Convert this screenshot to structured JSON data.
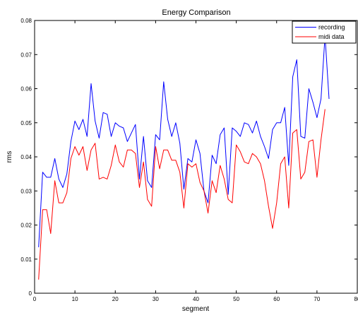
{
  "chart_data": {
    "type": "line",
    "title": "Energy Comparison",
    "xlabel": "segment",
    "ylabel": "rms",
    "xlim": [
      0,
      80
    ],
    "ylim": [
      0,
      0.08
    ],
    "xticks": [
      "0",
      "10",
      "20",
      "30",
      "40",
      "50",
      "60",
      "70",
      "80"
    ],
    "yticks": [
      "0",
      "0.01",
      "0.02",
      "0.03",
      "0.04",
      "0.05",
      "0.06",
      "0.07",
      "0.08"
    ],
    "grid": false,
    "legend_position": "top-right",
    "series": [
      {
        "name": "recording",
        "color": "#0000ff",
        "x": [
          1,
          2,
          3,
          4,
          5,
          6,
          7,
          8,
          9,
          10,
          11,
          12,
          13,
          14,
          15,
          16,
          17,
          18,
          19,
          20,
          21,
          22,
          23,
          24,
          25,
          26,
          27,
          28,
          29,
          30,
          31,
          32,
          33,
          34,
          35,
          36,
          37,
          38,
          39,
          40,
          41,
          42,
          43,
          44,
          45,
          46,
          47,
          48,
          49,
          50,
          51,
          52,
          53,
          54,
          55,
          56,
          57,
          58,
          59,
          60,
          61,
          62,
          63,
          64,
          65,
          66,
          67,
          68,
          69,
          70,
          71,
          72,
          73
        ],
        "y": [
          0.0135,
          0.0355,
          0.034,
          0.034,
          0.0395,
          0.0335,
          0.031,
          0.035,
          0.0445,
          0.0505,
          0.048,
          0.051,
          0.046,
          0.0615,
          0.0505,
          0.0455,
          0.053,
          0.0525,
          0.046,
          0.05,
          0.049,
          0.0485,
          0.0445,
          0.047,
          0.0495,
          0.0335,
          0.046,
          0.033,
          0.031,
          0.0465,
          0.045,
          0.062,
          0.051,
          0.046,
          0.05,
          0.044,
          0.0305,
          0.0395,
          0.0385,
          0.045,
          0.041,
          0.03,
          0.0265,
          0.0405,
          0.038,
          0.0465,
          0.0485,
          0.029,
          0.0485,
          0.0475,
          0.046,
          0.05,
          0.0495,
          0.047,
          0.0505,
          0.046,
          0.043,
          0.0395,
          0.048,
          0.05,
          0.05,
          0.0545,
          0.0375,
          0.0635,
          0.0685,
          0.046,
          0.0455,
          0.06,
          0.056,
          0.0515,
          0.057,
          0.0755,
          0.057
        ]
      },
      {
        "name": "midi data",
        "color": "#ff0000",
        "x": [
          1,
          2,
          3,
          4,
          5,
          6,
          7,
          8,
          9,
          10,
          11,
          12,
          13,
          14,
          15,
          16,
          17,
          18,
          19,
          20,
          21,
          22,
          23,
          24,
          25,
          26,
          27,
          28,
          29,
          30,
          31,
          32,
          33,
          34,
          35,
          36,
          37,
          38,
          39,
          40,
          41,
          42,
          43,
          44,
          45,
          46,
          47,
          48,
          49,
          50,
          51,
          52,
          53,
          54,
          55,
          56,
          57,
          58,
          59,
          60,
          61,
          62,
          63,
          64,
          65,
          66,
          67,
          68,
          69,
          70,
          71,
          72
        ],
        "y": [
          0.004,
          0.0245,
          0.0245,
          0.0175,
          0.033,
          0.0265,
          0.0265,
          0.0295,
          0.0395,
          0.043,
          0.0405,
          0.043,
          0.036,
          0.042,
          0.044,
          0.0335,
          0.034,
          0.0335,
          0.0375,
          0.0435,
          0.0385,
          0.037,
          0.042,
          0.042,
          0.041,
          0.031,
          0.0385,
          0.0275,
          0.0255,
          0.043,
          0.0365,
          0.042,
          0.042,
          0.039,
          0.039,
          0.0355,
          0.025,
          0.038,
          0.037,
          0.038,
          0.0325,
          0.03,
          0.0235,
          0.033,
          0.0295,
          0.0375,
          0.0335,
          0.0275,
          0.0265,
          0.0435,
          0.0415,
          0.0385,
          0.038,
          0.041,
          0.04,
          0.038,
          0.033,
          0.0255,
          0.019,
          0.0265,
          0.038,
          0.04,
          0.025,
          0.047,
          0.048,
          0.0335,
          0.0355,
          0.0445,
          0.045,
          0.034,
          0.045,
          0.054
        ]
      }
    ]
  }
}
